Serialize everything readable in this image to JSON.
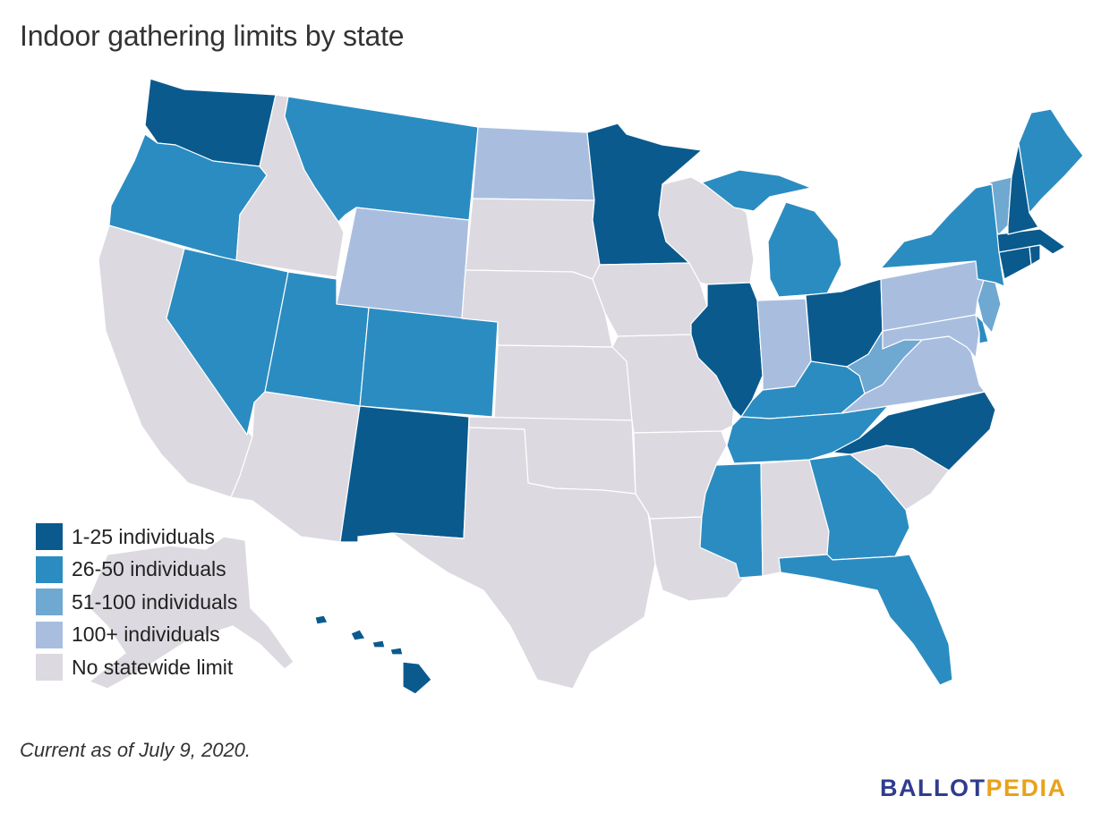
{
  "title": "Indoor gathering limits by state",
  "footnote": "Current as of July 9, 2020.",
  "logo": {
    "part1": "BALLOT",
    "part2": "PEDIA"
  },
  "colors": {
    "1-25": "#0a5a8e",
    "26-50": "#2b8cc1",
    "51-100": "#6fa8d1",
    "100+": "#a9bedf",
    "none": "#dcdae0"
  },
  "legend": [
    {
      "key": "1-25",
      "label": "1-25 individuals"
    },
    {
      "key": "26-50",
      "label": "26-50 individuals"
    },
    {
      "key": "51-100",
      "label": "51-100 individuals"
    },
    {
      "key": "100+",
      "label": "100+ individuals"
    },
    {
      "key": "none",
      "label": "No statewide limit"
    }
  ],
  "states": {
    "WA": "1-25",
    "OR": "26-50",
    "CA": "none",
    "NV": "26-50",
    "ID": "none",
    "MT": "26-50",
    "WY": "100+",
    "UT": "26-50",
    "CO": "26-50",
    "AZ": "none",
    "NM": "1-25",
    "ND": "100+",
    "SD": "none",
    "NE": "none",
    "KS": "none",
    "OK": "none",
    "TX": "none",
    "MN": "1-25",
    "IA": "none",
    "MO": "none",
    "AR": "none",
    "LA": "none",
    "WI": "none",
    "IL": "1-25",
    "MI": "26-50",
    "IN": "100+",
    "OH": "1-25",
    "KY": "26-50",
    "TN": "26-50",
    "MS": "26-50",
    "AL": "none",
    "GA": "26-50",
    "FL": "26-50",
    "SC": "none",
    "NC": "1-25",
    "VA": "100+",
    "WV": "51-100",
    "PA": "100+",
    "NY": "26-50",
    "NJ": "51-100",
    "DE": "26-50",
    "MD": "100+",
    "CT": "1-25",
    "RI": "1-25",
    "MA": "1-25",
    "VT": "51-100",
    "NH": "1-25",
    "ME": "26-50",
    "AK": "none",
    "HI": "1-25"
  }
}
